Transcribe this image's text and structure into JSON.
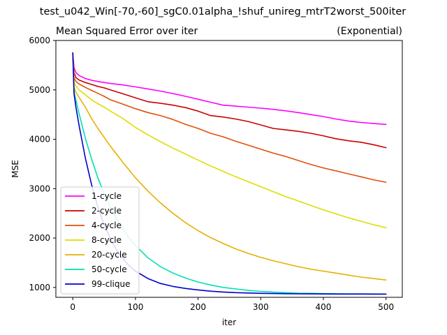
{
  "figure": {
    "suptitle": "test_u042_Win[-70,-60]_sgC0.01alpha_!shuf_unireg_mtrT2worst_500iter"
  },
  "chart_data": {
    "type": "line",
    "title": "Mean Squared Error over iter",
    "title_right": "(Exponential)",
    "xlabel": "iter",
    "ylabel": "MSE",
    "xlim": [
      -27,
      526
    ],
    "ylim": [
      800,
      6000
    ],
    "xticks": [
      0,
      100,
      200,
      300,
      400,
      500
    ],
    "yticks": [
      1000,
      2000,
      3000,
      4000,
      5000,
      6000
    ],
    "grid": false,
    "legend_position": "lower-left",
    "series": [
      {
        "name": "1-cycle",
        "color": "#ff00ff",
        "x": [
          0,
          2,
          5,
          10,
          20,
          30,
          40,
          50,
          60,
          80,
          100,
          120,
          140,
          160,
          180,
          200,
          220,
          240,
          260,
          280,
          300,
          320,
          340,
          360,
          380,
          400,
          420,
          440,
          460,
          480,
          500
        ],
        "y": [
          5750,
          5450,
          5350,
          5290,
          5230,
          5195,
          5170,
          5150,
          5130,
          5100,
          5060,
          5020,
          4975,
          4925,
          4870,
          4810,
          4750,
          4690,
          4670,
          4650,
          4630,
          4605,
          4575,
          4540,
          4500,
          4460,
          4410,
          4370,
          4340,
          4320,
          4300
        ]
      },
      {
        "name": "2-cycle",
        "color": "#cc0000",
        "x": [
          0,
          2,
          5,
          10,
          20,
          30,
          40,
          50,
          60,
          80,
          100,
          120,
          140,
          160,
          180,
          200,
          220,
          240,
          260,
          280,
          300,
          320,
          340,
          360,
          380,
          400,
          420,
          440,
          460,
          480,
          500
        ],
        "y": [
          5750,
          5350,
          5250,
          5200,
          5150,
          5110,
          5070,
          5040,
          5000,
          4920,
          4840,
          4760,
          4730,
          4690,
          4640,
          4570,
          4480,
          4450,
          4410,
          4360,
          4290,
          4220,
          4190,
          4160,
          4120,
          4070,
          4010,
          3970,
          3940,
          3890,
          3830
        ]
      },
      {
        "name": "4-cycle",
        "color": "#e0500a",
        "x": [
          0,
          2,
          5,
          10,
          20,
          30,
          40,
          50,
          60,
          80,
          100,
          120,
          140,
          160,
          180,
          200,
          220,
          240,
          260,
          280,
          300,
          320,
          340,
          360,
          380,
          400,
          420,
          440,
          460,
          480,
          500
        ],
        "y": [
          5750,
          5250,
          5170,
          5120,
          5050,
          4990,
          4930,
          4870,
          4800,
          4710,
          4620,
          4540,
          4480,
          4400,
          4300,
          4220,
          4120,
          4050,
          3960,
          3880,
          3800,
          3720,
          3650,
          3570,
          3490,
          3420,
          3360,
          3300,
          3240,
          3180,
          3130
        ]
      },
      {
        "name": "8-cycle",
        "color": "#dddd00",
        "x": [
          0,
          2,
          5,
          10,
          20,
          30,
          40,
          50,
          60,
          80,
          100,
          120,
          140,
          160,
          180,
          200,
          220,
          240,
          260,
          280,
          300,
          320,
          340,
          360,
          380,
          400,
          420,
          440,
          460,
          480,
          500
        ],
        "y": [
          5750,
          5150,
          5080,
          5000,
          4900,
          4800,
          4720,
          4650,
          4570,
          4420,
          4240,
          4090,
          3950,
          3820,
          3700,
          3580,
          3460,
          3350,
          3240,
          3140,
          3040,
          2940,
          2840,
          2750,
          2660,
          2570,
          2490,
          2410,
          2340,
          2270,
          2210
        ]
      },
      {
        "name": "20-cycle",
        "color": "#e6b000",
        "x": [
          0,
          2,
          5,
          10,
          20,
          30,
          40,
          50,
          60,
          80,
          100,
          120,
          140,
          160,
          180,
          200,
          220,
          240,
          260,
          280,
          300,
          320,
          340,
          360,
          380,
          400,
          420,
          440,
          460,
          480,
          500
        ],
        "y": [
          5750,
          5050,
          4950,
          4850,
          4650,
          4420,
          4220,
          4040,
          3860,
          3530,
          3220,
          2950,
          2710,
          2500,
          2310,
          2150,
          2010,
          1890,
          1780,
          1690,
          1610,
          1540,
          1480,
          1420,
          1370,
          1330,
          1290,
          1250,
          1210,
          1180,
          1150
        ]
      },
      {
        "name": "50-cycle",
        "color": "#00e0b0",
        "x": [
          0,
          2,
          5,
          10,
          20,
          30,
          40,
          50,
          60,
          70,
          80,
          90,
          100,
          120,
          140,
          160,
          180,
          200,
          220,
          240,
          260,
          280,
          300,
          320,
          340,
          360,
          380,
          400,
          420,
          440,
          460,
          480,
          500
        ],
        "y": [
          5750,
          4970,
          4790,
          4520,
          4020,
          3600,
          3220,
          2900,
          2620,
          2380,
          2180,
          2000,
          1850,
          1600,
          1420,
          1290,
          1190,
          1110,
          1050,
          1000,
          970,
          940,
          920,
          905,
          895,
          885,
          880,
          875,
          872,
          870,
          869,
          868,
          867
        ]
      },
      {
        "name": "99-clique",
        "color": "#0000cc",
        "x": [
          0,
          2,
          5,
          10,
          20,
          30,
          40,
          50,
          60,
          70,
          80,
          90,
          100,
          120,
          140,
          160,
          180,
          200,
          220,
          240,
          260,
          280,
          300,
          320,
          340,
          360,
          380,
          400,
          420,
          440,
          460,
          480,
          500
        ],
        "y": [
          5750,
          4920,
          4650,
          4280,
          3620,
          3080,
          2630,
          2270,
          1990,
          1760,
          1580,
          1440,
          1330,
          1180,
          1080,
          1020,
          980,
          950,
          925,
          908,
          895,
          887,
          881,
          877,
          874,
          871,
          869,
          868,
          867,
          866,
          866,
          865,
          865
        ]
      }
    ]
  }
}
